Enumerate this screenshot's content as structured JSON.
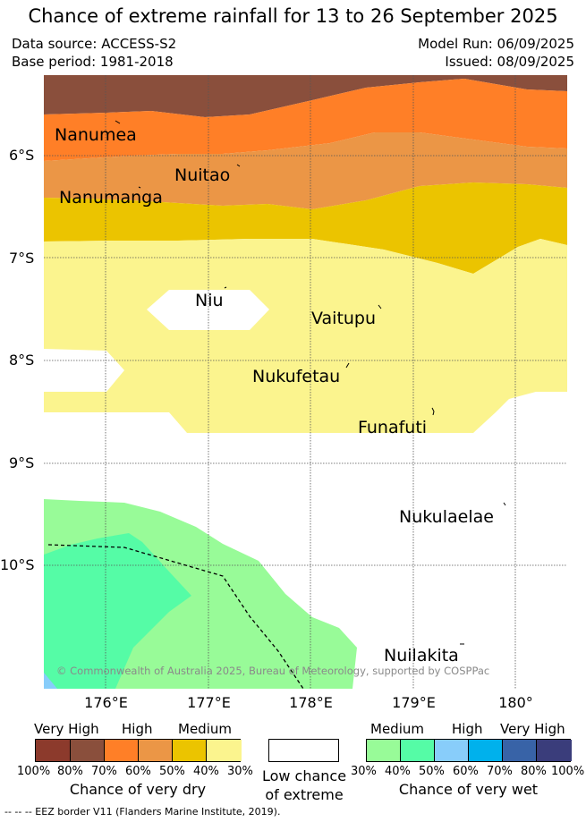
{
  "header": {
    "title": "Chance of extreme rainfall for 13 to 26 September 2025",
    "data_source": "Data source: ACCESS-S2",
    "base_period": "Base period: 1981-2018",
    "model_run": "Model Run: 06/09/2025",
    "issued": "Issued: 08/09/2025"
  },
  "map": {
    "lat_labels": [
      "6°S",
      "7°S",
      "8°S",
      "9°S",
      "10°S"
    ],
    "lon_labels": [
      "176°E",
      "177°E",
      "178°E",
      "179°E",
      "180°"
    ],
    "places": [
      "Nanumea",
      "Nuitao",
      "Nanumanga",
      "Niu",
      "Vaitupu",
      "Nukufetau",
      "Funafuti",
      "Nukulaelae",
      "Nuilakita"
    ],
    "copyright": "© Commonwealth of Australia 2025, Bureau of Meteorology, supported by COSPPac",
    "eez_note": "--  --  -- EEZ border V11 (Flanders Marine Institute, 2019)."
  },
  "legend": {
    "dry": {
      "levels": [
        "Very High",
        "High",
        "Medium"
      ],
      "percents": [
        "100%",
        "80%",
        "70%",
        "60%",
        "50%",
        "40%",
        "30%"
      ],
      "caption": "Chance of very dry",
      "colors": [
        "#8c3a2c",
        "#8a4f3c",
        "#ff7f27",
        "#eb9646",
        "#ebc400",
        "#fbf48e"
      ]
    },
    "neutral": {
      "caption_line1": "Low chance",
      "caption_line2": "of extreme",
      "color": "#ffffff"
    },
    "wet": {
      "levels": [
        "Medium",
        "High",
        "Very High"
      ],
      "percents": [
        "30%",
        "40%",
        "50%",
        "60%",
        "70%",
        "80%",
        "100%"
      ],
      "caption": "Chance of very wet",
      "colors": [
        "#98fb98",
        "#55fca6",
        "#88cdfa",
        "#00b1ec",
        "#3863a7",
        "#3a3d7b"
      ]
    }
  }
}
